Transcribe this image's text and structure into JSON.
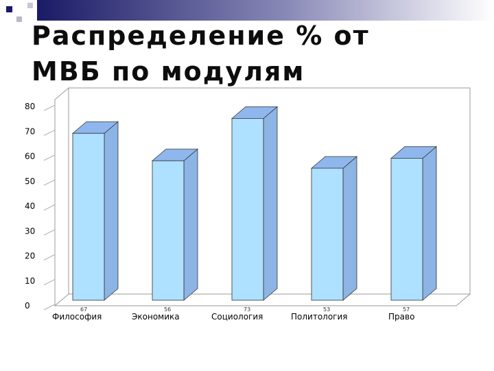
{
  "slide": {
    "title_line1": "Распределение % от",
    "title_line2": "МВБ по модулям"
  },
  "colors": {
    "bar_front": "#aee0ff",
    "bar_side": "#8cb4e4",
    "bar_top": "#8fb7ee",
    "deco_dark": "#1a1a66",
    "deco_gradient_end": "#ffffff"
  },
  "chart_data": {
    "type": "bar",
    "title": "",
    "xlabel": "",
    "ylabel": "",
    "categories": [
      "Философия",
      "Экономика",
      "Социология",
      "Политология",
      "Право"
    ],
    "values": [
      67,
      56,
      73,
      53,
      57
    ],
    "data_labels": [
      "67",
      "56",
      "73",
      "53",
      "57"
    ],
    "ylim": [
      0,
      80
    ],
    "yticks": [
      "0",
      "10",
      "20",
      "30",
      "40",
      "50",
      "60",
      "70",
      "80"
    ],
    "grid": false,
    "style": "3d-column"
  }
}
